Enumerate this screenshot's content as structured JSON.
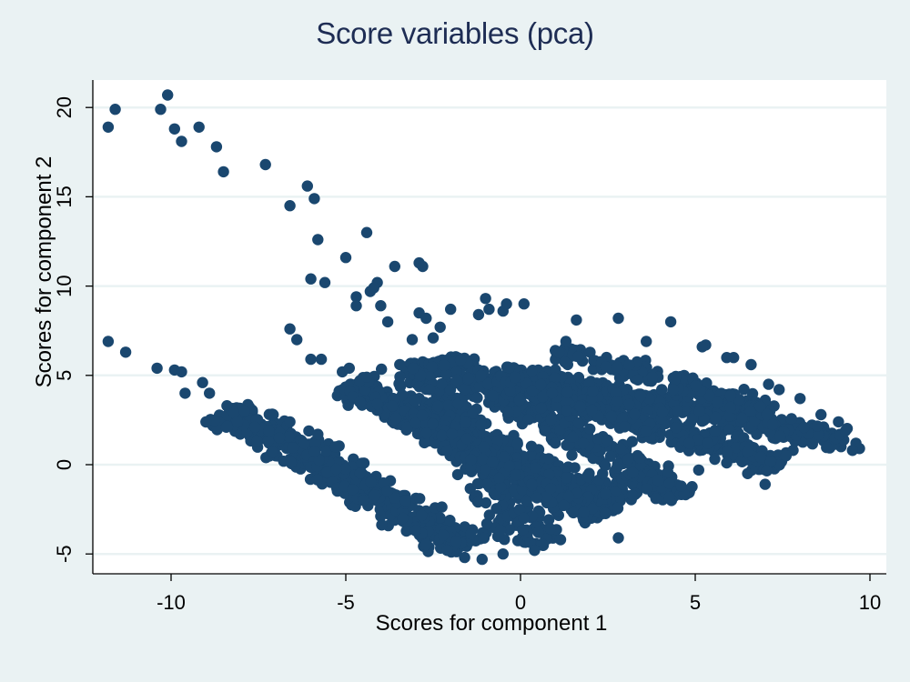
{
  "chart_data": {
    "type": "scatter",
    "title": "Score variables (pca)",
    "xlabel": "Scores for component 1",
    "ylabel": "Scores for component 2",
    "xlim": [
      -12.2,
      10.5
    ],
    "ylim": [
      -6.2,
      21.8
    ],
    "xticks": [
      -10,
      -5,
      0,
      5,
      10
    ],
    "yticks": [
      -5,
      0,
      5,
      10,
      15,
      20
    ],
    "xtick_labels": [
      "-10",
      "-5",
      "0",
      "5",
      "10"
    ],
    "ytick_labels": [
      "-5",
      "0",
      "5",
      "10",
      "15",
      "20"
    ],
    "grid": "horizontal",
    "legend": "none",
    "marker_color": "#1a476f",
    "marker": "filled circle",
    "series": [
      {
        "name": "scores",
        "points": [
          [
            -11.8,
            18.9
          ],
          [
            -11.6,
            19.9
          ],
          [
            -10.3,
            19.9
          ],
          [
            -10.1,
            20.7
          ],
          [
            -9.9,
            18.8
          ],
          [
            -9.7,
            18.1
          ],
          [
            -9.2,
            18.9
          ],
          [
            -8.7,
            17.8
          ],
          [
            -8.5,
            16.4
          ],
          [
            -7.3,
            16.8
          ],
          [
            -6.1,
            15.6
          ],
          [
            -5.9,
            14.9
          ],
          [
            -6.6,
            14.5
          ],
          [
            -5.8,
            12.6
          ],
          [
            -4.4,
            13.0
          ],
          [
            -5.0,
            11.6
          ],
          [
            -6.0,
            10.4
          ],
          [
            -5.6,
            10.2
          ],
          [
            -2.9,
            11.3
          ],
          [
            -2.8,
            11.1
          ],
          [
            -3.6,
            11.1
          ],
          [
            -4.1,
            10.2
          ],
          [
            -4.3,
            9.7
          ],
          [
            -4.2,
            9.9
          ],
          [
            -4.7,
            9.4
          ],
          [
            -4.7,
            8.9
          ],
          [
            -4.0,
            8.9
          ],
          [
            -3.8,
            8.0
          ],
          [
            -2.9,
            8.5
          ],
          [
            -2.7,
            8.2
          ],
          [
            -2.3,
            7.7
          ],
          [
            -2.5,
            7.1
          ],
          [
            -3.1,
            7.0
          ],
          [
            -2.0,
            8.7
          ],
          [
            -1.0,
            9.3
          ],
          [
            -0.9,
            8.7
          ],
          [
            -0.5,
            8.6
          ],
          [
            -1.2,
            8.4
          ],
          [
            0.1,
            9.0
          ],
          [
            -0.4,
            9.0
          ],
          [
            -6.6,
            7.6
          ],
          [
            -6.4,
            7.0
          ],
          [
            -6.0,
            5.9
          ],
          [
            -5.7,
            5.9
          ],
          [
            -11.8,
            6.9
          ],
          [
            -11.3,
            6.3
          ],
          [
            -10.4,
            5.4
          ],
          [
            -9.9,
            5.3
          ],
          [
            -9.7,
            5.2
          ],
          [
            -9.6,
            4.0
          ],
          [
            -9.1,
            4.6
          ],
          [
            -8.9,
            4.0
          ],
          [
            -8.4,
            3.3
          ],
          [
            -8.2,
            2.9
          ],
          [
            -7.9,
            3.0
          ],
          [
            -8.1,
            2.4
          ],
          [
            -7.6,
            2.1
          ],
          [
            -7.2,
            1.9
          ],
          [
            -6.9,
            1.5
          ],
          [
            -6.6,
            2.4
          ],
          [
            -6.2,
            1.2
          ],
          [
            -5.8,
            1.7
          ],
          [
            -5.3,
            1.0
          ],
          [
            -5.1,
            5.2
          ],
          [
            -4.9,
            5.4
          ],
          [
            -4.6,
            4.7
          ],
          [
            -4.4,
            4.9
          ],
          [
            -4.8,
            3.8
          ],
          [
            -4.6,
            3.5
          ],
          [
            -4.1,
            3.4
          ],
          [
            1.6,
            8.1
          ],
          [
            2.8,
            8.2
          ],
          [
            4.3,
            8.0
          ],
          [
            1.3,
            6.9
          ],
          [
            3.6,
            6.9
          ],
          [
            5.3,
            6.7
          ],
          [
            5.2,
            6.6
          ],
          [
            5.9,
            6.0
          ],
          [
            6.1,
            6.0
          ],
          [
            6.6,
            5.6
          ],
          [
            7.1,
            4.5
          ],
          [
            7.4,
            4.2
          ],
          [
            8.0,
            3.7
          ],
          [
            8.6,
            2.8
          ],
          [
            9.1,
            2.4
          ],
          [
            9.3,
            1.9
          ],
          [
            9.6,
            1.2
          ],
          [
            9.7,
            0.9
          ],
          [
            9.5,
            0.8
          ],
          [
            7.8,
            0.8
          ],
          [
            7.6,
            0.5
          ],
          [
            7.0,
            -1.1
          ],
          [
            6.5,
            -0.5
          ],
          [
            5.9,
            0.1
          ],
          [
            5.1,
            -0.3
          ],
          [
            4.6,
            -1.2
          ],
          [
            3.2,
            -1.7
          ],
          [
            2.8,
            -4.1
          ],
          [
            0.4,
            -4.8
          ],
          [
            -1.6,
            -5.2
          ],
          [
            -1.1,
            -5.3
          ],
          [
            -0.5,
            -5.0
          ],
          [
            -2.1,
            -4.8
          ],
          [
            -3.0,
            -3.7
          ],
          [
            -4.5,
            -2.0
          ]
        ],
        "clusters": [
          {
            "from": [
              -8.4,
              3.0
            ],
            "to": [
              -1.5,
              -4.6
            ],
            "width": 1.6,
            "n": 520
          },
          {
            "from": [
              -5.0,
              4.4
            ],
            "to": [
              3.0,
              -2.2
            ],
            "width": 1.5,
            "n": 520
          },
          {
            "from": [
              -3.0,
              5.8
            ],
            "to": [
              0.5,
              -4.6
            ],
            "width": 1.8,
            "n": 300
          },
          {
            "from": [
              -2.2,
              5.9
            ],
            "to": [
              4.6,
              -1.8
            ],
            "width": 1.4,
            "n": 380
          },
          {
            "from": [
              -0.5,
              5.2
            ],
            "to": [
              9.3,
              1.3
            ],
            "width": 1.2,
            "n": 420
          },
          {
            "from": [
              0.3,
              4.2
            ],
            "to": [
              7.5,
              0.0
            ],
            "width": 1.3,
            "n": 380
          },
          {
            "from": [
              1.0,
              6.4
            ],
            "to": [
              7.2,
              3.0
            ],
            "width": 1.0,
            "n": 180
          },
          {
            "from": [
              -3.2,
              2.7
            ],
            "to": [
              2.2,
              -3.0
            ],
            "width": 1.2,
            "n": 260
          }
        ]
      }
    ]
  }
}
